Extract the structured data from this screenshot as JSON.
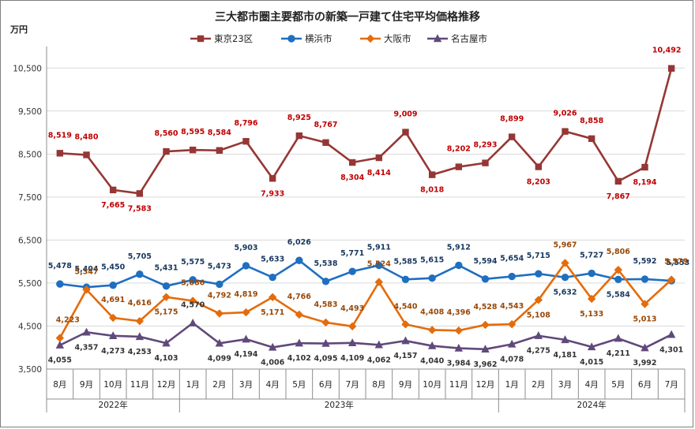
{
  "chart_data": {
    "type": "line",
    "title": "三大都市圏主要都市の新築一戸建て住宅平均価格推移",
    "ylabel": "万円",
    "ylim": [
      3500,
      11000
    ],
    "yticks": [
      3500,
      4500,
      5500,
      6500,
      7500,
      8500,
      9500,
      10500
    ],
    "ytick_labels": [
      "3,500",
      "4,500",
      "5,500",
      "6,500",
      "7,500",
      "8,500",
      "9,500",
      "10,500"
    ],
    "categories": [
      "8月",
      "9月",
      "10月",
      "11月",
      "12月",
      "1月",
      "2月",
      "3月",
      "4月",
      "5月",
      "6月",
      "7月",
      "8月",
      "9月",
      "10月",
      "11月",
      "12月",
      "1月",
      "2月",
      "3月",
      "4月",
      "5月",
      "6月",
      "7月"
    ],
    "years": [
      {
        "label": "2022年",
        "start": 0,
        "end": 4
      },
      {
        "label": "2023年",
        "start": 5,
        "end": 16
      },
      {
        "label": "2024年",
        "start": 17,
        "end": 23
      }
    ],
    "legend_position": "top-center",
    "series": [
      {
        "name": "東京23区",
        "color": "#953735",
        "marker": "square",
        "values": [
          8519,
          8480,
          7665,
          7583,
          8560,
          8595,
          8584,
          8796,
          7933,
          8925,
          8767,
          8304,
          8414,
          9009,
          8018,
          8202,
          8293,
          8899,
          8203,
          9026,
          8858,
          7867,
          8194,
          10492
        ],
        "labels": [
          "8,519",
          "8,480",
          "7,665",
          "7,583",
          "8,560",
          "8,595",
          "8,584",
          "8,796",
          "7,933",
          "8,925",
          "8,767",
          "8,304",
          "8,414",
          "9,009",
          "8,018",
          "8,202",
          "8,293",
          "8,899",
          "8,203",
          "9,026",
          "8,858",
          "7,867",
          "8,194",
          "10,492"
        ]
      },
      {
        "name": "横浜市",
        "color": "#1f6fc0",
        "marker": "circle",
        "values": [
          5478,
          5404,
          5450,
          5705,
          5431,
          5575,
          5473,
          5903,
          5633,
          6026,
          5538,
          5771,
          5911,
          5585,
          5615,
          5912,
          5594,
          5654,
          5715,
          5632,
          5727,
          5584,
          5592,
          5553
        ],
        "labels": [
          "5,478",
          "5,404",
          "5,450",
          "5,705",
          "5,431",
          "5,575",
          "5,473",
          "5,903",
          "5,633",
          "6,026",
          "5,538",
          "5,771",
          "5,911",
          "5,585",
          "5,615",
          "5,912",
          "5,594",
          "5,654",
          "5,715",
          "5,632",
          "5,727",
          "5,584",
          "5,592",
          "5,553"
        ]
      },
      {
        "name": "大阪市",
        "color": "#e46c0a",
        "marker": "diamond",
        "values": [
          4223,
          5347,
          4691,
          4616,
          5175,
          5086,
          4792,
          4819,
          5171,
          4766,
          4583,
          4493,
          5524,
          4540,
          4408,
          4396,
          4528,
          4543,
          5108,
          5967,
          5133,
          5806,
          5013,
          5579
        ],
        "labels": [
          "4,223",
          "5,347",
          "4,691",
          "4,616",
          "5,175",
          "5,086",
          "4,792",
          "4,819",
          "5,171",
          "4,766",
          "4,583",
          "4,493",
          "5,524",
          "4,540",
          "4,408",
          "4,396",
          "4,528",
          "4,543",
          "5,108",
          "5,967",
          "5,133",
          "5,806",
          "5,013",
          "5,579"
        ]
      },
      {
        "name": "名古屋市",
        "color": "#60497a",
        "marker": "triangle",
        "values": [
          4055,
          4357,
          4273,
          4253,
          4103,
          4570,
          4099,
          4194,
          4006,
          4102,
          4095,
          4109,
          4062,
          4157,
          4040,
          3984,
          3962,
          4078,
          4275,
          4181,
          4015,
          4211,
          3992,
          4301
        ],
        "labels": [
          "4,055",
          "4,357",
          "4,273",
          "4,253",
          "4,103",
          "4,570",
          "4,099",
          "4,194",
          "4,006",
          "4,102",
          "4,095",
          "4,109",
          "4,062",
          "4,157",
          "4,040",
          "3,984",
          "3,962",
          "4,078",
          "4,275",
          "4,181",
          "4,015",
          "4,211",
          "3,992",
          "4,301"
        ]
      }
    ]
  }
}
